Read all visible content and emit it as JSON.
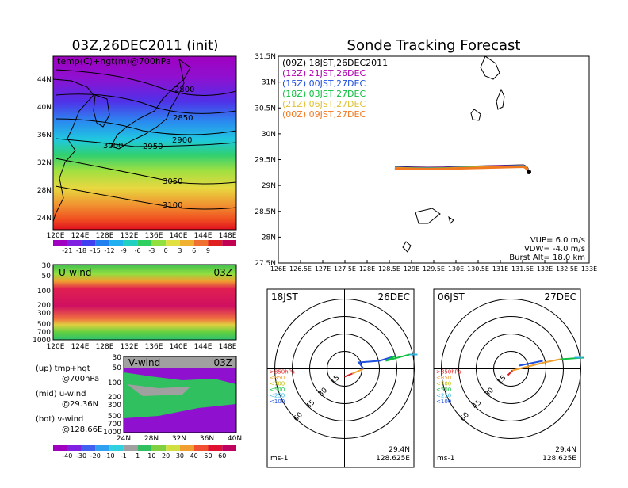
{
  "colors": {
    "black": "#000000",
    "track_colors": [
      "#000000",
      "#b000b0",
      "#2050e0",
      "#10c040",
      "#e0c030",
      "#f07820"
    ],
    "temp_palette": [
      "#a000c0",
      "#8020e0",
      "#4040f0",
      "#2080f0",
      "#20b0f0",
      "#20d0c0",
      "#30d060",
      "#90e040",
      "#e0e040",
      "#f0b030",
      "#f07030",
      "#e02020",
      "#c00050"
    ],
    "wind_palette": [
      "#a000c0",
      "#8020e0",
      "#4060f0",
      "#30a0f0",
      "#30d0e0",
      "#a0a0a0",
      "#30c060",
      "#80d040",
      "#d0e040",
      "#f0a030",
      "#f05030",
      "#e01030",
      "#c00060"
    ]
  },
  "left_map": {
    "title": "03Z,26DEC2011 (init)",
    "label": "temp(C)+hgt(m)@700hPa",
    "lat_ticks": [
      "44N",
      "40N",
      "36N",
      "32N",
      "28N",
      "24N"
    ],
    "lon_ticks": [
      "120E",
      "124E",
      "128E",
      "132E",
      "136E",
      "140E",
      "144E",
      "148E"
    ],
    "contour_labels": [
      "2800",
      "2850",
      "2900",
      "2950",
      "3000",
      "3050",
      "3100"
    ],
    "colorbar_labels": [
      "-21",
      "-18",
      "-15",
      "-12",
      "-9",
      "-6",
      "-3",
      "0",
      "3",
      "6",
      "9"
    ]
  },
  "u_wind": {
    "label": "U-wind",
    "time": "03Z",
    "y_ticks": [
      "30",
      "50",
      "100",
      "200",
      "300",
      "500",
      "700",
      "1000"
    ],
    "x_ticks": [
      "120E",
      "124E",
      "128E",
      "132E",
      "136E",
      "140E",
      "144E",
      "148E"
    ]
  },
  "v_wind": {
    "label": "V-wind",
    "time": "03Z",
    "y_ticks": [
      "30",
      "50",
      "100",
      "200",
      "300",
      "500",
      "700",
      "1000"
    ],
    "x_ticks": [
      "24N",
      "28N",
      "32N",
      "36N",
      "40N"
    ],
    "colorbar_labels": [
      "-40",
      "-30",
      "-20",
      "-10",
      "-1",
      "1",
      "10",
      "20",
      "30",
      "40",
      "50",
      "60"
    ]
  },
  "legend_text": [
    {
      "line1": "(up) tmp+hgt",
      "line2": "@700hPa"
    },
    {
      "line1": "(mid) u-wind",
      "line2": "@29.36N"
    },
    {
      "line1": "(bot) v-wind",
      "line2": "@128.66E"
    }
  ],
  "track": {
    "title": "Sonde Tracking Forecast",
    "runs": [
      {
        "utc": "(09Z)",
        "jst": "18JST,26DEC2011"
      },
      {
        "utc": "(12Z)",
        "jst": "21JST,26DEC"
      },
      {
        "utc": "(15Z)",
        "jst": "00JST,27DEC"
      },
      {
        "utc": "(18Z)",
        "jst": "03JST,27DEC"
      },
      {
        "utc": "(21Z)",
        "jst": "06JST,27DEC"
      },
      {
        "utc": "(00Z)",
        "jst": "09JST,27DEC"
      }
    ],
    "lat_ticks": [
      "31.5N",
      "31N",
      "30.5N",
      "30N",
      "29.5N",
      "29N",
      "28.5N",
      "28N",
      "27.5N"
    ],
    "lon_ticks": [
      "126E",
      "126.5E",
      "127E",
      "127.5E",
      "128E",
      "128.5E",
      "129E",
      "129.5E",
      "130E",
      "130.5E",
      "131E",
      "131.5E",
      "132E",
      "132.5E",
      "133E"
    ],
    "params": [
      {
        "label": "VUP=",
        "value": "6.0",
        "unit": "m/s"
      },
      {
        "label": "VDW=",
        "value": "-4.0",
        "unit": "m/s"
      },
      {
        "label": "Burst Alt=",
        "value": "18.0",
        "unit": "km"
      }
    ]
  },
  "hodo_left": {
    "time": "18JST",
    "date": "26DEC",
    "lat": "29.4N",
    "lon": "128.625E",
    "unit": "ms-1",
    "rings": [
      "15",
      "30",
      "45",
      "60"
    ],
    "levels": [
      ">850hPa",
      "<850",
      "<700",
      "<500",
      "<250",
      "<100"
    ]
  },
  "hodo_right": {
    "time": "06JST",
    "date": "27DEC",
    "lat": "29.4N",
    "lon": "128.625E",
    "unit": "ms-1",
    "rings": [
      "15",
      "30",
      "45",
      "60"
    ],
    "levels": [
      ">850hPa",
      "<850",
      "<700",
      "<500",
      "<250",
      "<100"
    ]
  }
}
